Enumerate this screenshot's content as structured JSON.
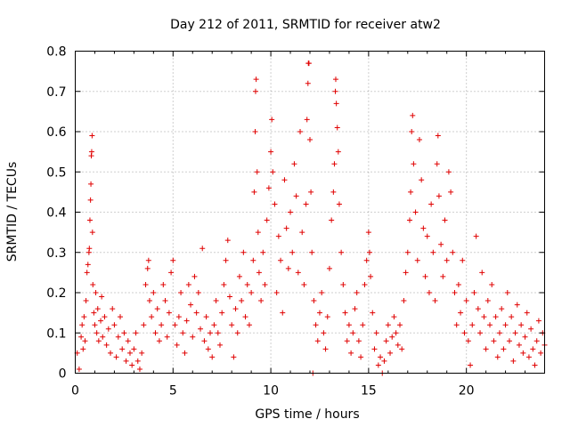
{
  "chart_data": {
    "type": "scatter",
    "title": "Day 212 of 2011, SRMTID for receiver atw2",
    "xlabel": "GPS time / hours",
    "ylabel": "SRMTID / TECUs",
    "xlim": [
      0,
      24
    ],
    "ylim": [
      0,
      0.8
    ],
    "xticks": [
      0,
      5,
      10,
      15,
      20
    ],
    "xtick_labels": [
      "0",
      "5",
      "10",
      "15",
      "20"
    ],
    "yticks": [
      0,
      0.1,
      0.2,
      0.3,
      0.4,
      0.5,
      0.6,
      0.7,
      0.8
    ],
    "ytick_labels": [
      "0",
      "0.1",
      "0.2",
      "0.3",
      "0.4",
      "0.5",
      "0.6",
      "0.7",
      "0.8"
    ],
    "grid": true,
    "marker": "plus",
    "color": "#e00000",
    "series": [
      {
        "name": "SRMTID",
        "points": [
          [
            0.1,
            0.05
          ],
          [
            0.2,
            0.01
          ],
          [
            0.3,
            0.09
          ],
          [
            0.35,
            0.12
          ],
          [
            0.4,
            0.06
          ],
          [
            0.45,
            0.14
          ],
          [
            0.5,
            0.08
          ],
          [
            0.55,
            0.18
          ],
          [
            0.6,
            0.25
          ],
          [
            0.65,
            0.27
          ],
          [
            0.7,
            0.3
          ],
          [
            0.72,
            0.31
          ],
          [
            0.75,
            0.38
          ],
          [
            0.78,
            0.43
          ],
          [
            0.8,
            0.47
          ],
          [
            0.82,
            0.54
          ],
          [
            0.84,
            0.55
          ],
          [
            0.86,
            0.59
          ],
          [
            0.88,
            0.35
          ],
          [
            0.9,
            0.22
          ],
          [
            0.95,
            0.15
          ],
          [
            1.0,
            0.12
          ],
          [
            1.05,
            0.2
          ],
          [
            1.1,
            0.1
          ],
          [
            1.15,
            0.16
          ],
          [
            1.2,
            0.08
          ],
          [
            1.3,
            0.13
          ],
          [
            1.35,
            0.19
          ],
          [
            1.4,
            0.09
          ],
          [
            1.5,
            0.14
          ],
          [
            1.6,
            0.07
          ],
          [
            1.7,
            0.11
          ],
          [
            1.8,
            0.05
          ],
          [
            1.9,
            0.16
          ],
          [
            2.0,
            0.12
          ],
          [
            2.1,
            0.04
          ],
          [
            2.2,
            0.09
          ],
          [
            2.3,
            0.14
          ],
          [
            2.4,
            0.06
          ],
          [
            2.5,
            0.1
          ],
          [
            2.6,
            0.03
          ],
          [
            2.7,
            0.08
          ],
          [
            2.8,
            0.05
          ],
          [
            2.9,
            0.02
          ],
          [
            3.0,
            0.06
          ],
          [
            3.1,
            0.1
          ],
          [
            3.2,
            0.03
          ],
          [
            3.3,
            0.01
          ],
          [
            3.4,
            0.05
          ],
          [
            3.5,
            0.12
          ],
          [
            3.6,
            0.22
          ],
          [
            3.7,
            0.26
          ],
          [
            3.75,
            0.28
          ],
          [
            3.8,
            0.18
          ],
          [
            3.9,
            0.14
          ],
          [
            4.0,
            0.2
          ],
          [
            4.1,
            0.1
          ],
          [
            4.2,
            0.16
          ],
          [
            4.3,
            0.08
          ],
          [
            4.4,
            0.12
          ],
          [
            4.5,
            0.22
          ],
          [
            4.6,
            0.18
          ],
          [
            4.7,
            0.09
          ],
          [
            4.8,
            0.15
          ],
          [
            4.9,
            0.25
          ],
          [
            5.0,
            0.28
          ],
          [
            5.1,
            0.12
          ],
          [
            5.2,
            0.07
          ],
          [
            5.3,
            0.14
          ],
          [
            5.4,
            0.2
          ],
          [
            5.5,
            0.1
          ],
          [
            5.6,
            0.05
          ],
          [
            5.7,
            0.13
          ],
          [
            5.8,
            0.22
          ],
          [
            5.9,
            0.17
          ],
          [
            6.0,
            0.09
          ],
          [
            6.1,
            0.24
          ],
          [
            6.2,
            0.15
          ],
          [
            6.3,
            0.2
          ],
          [
            6.4,
            0.11
          ],
          [
            6.5,
            0.31
          ],
          [
            6.6,
            0.08
          ],
          [
            6.7,
            0.14
          ],
          [
            6.8,
            0.06
          ],
          [
            6.9,
            0.1
          ],
          [
            7.0,
            0.04
          ],
          [
            7.1,
            0.12
          ],
          [
            7.2,
            0.18
          ],
          [
            7.3,
            0.1
          ],
          [
            7.4,
            0.07
          ],
          [
            7.5,
            0.15
          ],
          [
            7.6,
            0.22
          ],
          [
            7.7,
            0.28
          ],
          [
            7.8,
            0.33
          ],
          [
            7.9,
            0.19
          ],
          [
            8.0,
            0.12
          ],
          [
            8.1,
            0.04
          ],
          [
            8.2,
            0.16
          ],
          [
            8.3,
            0.1
          ],
          [
            8.4,
            0.24
          ],
          [
            8.5,
            0.18
          ],
          [
            8.6,
            0.3
          ],
          [
            8.7,
            0.14
          ],
          [
            8.8,
            0.22
          ],
          [
            8.9,
            0.12
          ],
          [
            9.0,
            0.2
          ],
          [
            9.1,
            0.28
          ],
          [
            9.15,
            0.45
          ],
          [
            9.2,
            0.6
          ],
          [
            9.22,
            0.7
          ],
          [
            9.25,
            0.73
          ],
          [
            9.3,
            0.5
          ],
          [
            9.35,
            0.35
          ],
          [
            9.4,
            0.25
          ],
          [
            9.5,
            0.18
          ],
          [
            9.6,
            0.3
          ],
          [
            9.7,
            0.22
          ],
          [
            9.8,
            0.38
          ],
          [
            9.9,
            0.46
          ],
          [
            10.0,
            0.55
          ],
          [
            10.05,
            0.63
          ],
          [
            10.1,
            0.5
          ],
          [
            10.2,
            0.42
          ],
          [
            10.3,
            0.2
          ],
          [
            10.4,
            0.34
          ],
          [
            10.5,
            0.28
          ],
          [
            10.6,
            0.15
          ],
          [
            10.7,
            0.48
          ],
          [
            10.8,
            0.36
          ],
          [
            10.9,
            0.26
          ],
          [
            11.0,
            0.4
          ],
          [
            11.1,
            0.3
          ],
          [
            11.2,
            0.52
          ],
          [
            11.3,
            0.44
          ],
          [
            11.4,
            0.25
          ],
          [
            11.5,
            0.6
          ],
          [
            11.6,
            0.35
          ],
          [
            11.7,
            0.22
          ],
          [
            11.8,
            0.42
          ],
          [
            11.85,
            0.63
          ],
          [
            11.9,
            0.72
          ],
          [
            11.92,
            0.77
          ],
          [
            11.95,
            0.77
          ],
          [
            12.0,
            0.58
          ],
          [
            12.05,
            0.45
          ],
          [
            12.1,
            0.3
          ],
          [
            12.15,
            0.0
          ],
          [
            12.2,
            0.18
          ],
          [
            12.3,
            0.12
          ],
          [
            12.4,
            0.08
          ],
          [
            12.5,
            0.15
          ],
          [
            12.6,
            0.2
          ],
          [
            12.7,
            0.1
          ],
          [
            12.8,
            0.06
          ],
          [
            12.9,
            0.14
          ],
          [
            13.0,
            0.26
          ],
          [
            13.1,
            0.38
          ],
          [
            13.2,
            0.45
          ],
          [
            13.25,
            0.52
          ],
          [
            13.3,
            0.7
          ],
          [
            13.32,
            0.73
          ],
          [
            13.35,
            0.67
          ],
          [
            13.4,
            0.61
          ],
          [
            13.45,
            0.55
          ],
          [
            13.5,
            0.42
          ],
          [
            13.6,
            0.3
          ],
          [
            13.7,
            0.22
          ],
          [
            13.8,
            0.15
          ],
          [
            13.9,
            0.08
          ],
          [
            14.0,
            0.12
          ],
          [
            14.1,
            0.05
          ],
          [
            14.2,
            0.1
          ],
          [
            14.3,
            0.16
          ],
          [
            14.4,
            0.2
          ],
          [
            14.5,
            0.08
          ],
          [
            14.6,
            0.04
          ],
          [
            14.7,
            0.12
          ],
          [
            14.8,
            0.22
          ],
          [
            14.9,
            0.28
          ],
          [
            15.0,
            0.35
          ],
          [
            15.05,
            0.3
          ],
          [
            15.1,
            0.24
          ],
          [
            15.2,
            0.15
          ],
          [
            15.3,
            0.06
          ],
          [
            15.4,
            0.1
          ],
          [
            15.5,
            0.02
          ],
          [
            15.6,
            0.04
          ],
          [
            15.7,
            0.0
          ],
          [
            15.8,
            0.03
          ],
          [
            15.9,
            0.08
          ],
          [
            16.0,
            0.12
          ],
          [
            16.1,
            0.05
          ],
          [
            16.2,
            0.09
          ],
          [
            16.3,
            0.14
          ],
          [
            16.4,
            0.1
          ],
          [
            16.5,
            0.07
          ],
          [
            16.6,
            0.12
          ],
          [
            16.7,
            0.06
          ],
          [
            16.8,
            0.18
          ],
          [
            16.9,
            0.25
          ],
          [
            17.0,
            0.3
          ],
          [
            17.1,
            0.38
          ],
          [
            17.15,
            0.45
          ],
          [
            17.2,
            0.6
          ],
          [
            17.25,
            0.64
          ],
          [
            17.3,
            0.52
          ],
          [
            17.4,
            0.4
          ],
          [
            17.5,
            0.28
          ],
          [
            17.6,
            0.58
          ],
          [
            17.7,
            0.48
          ],
          [
            17.8,
            0.36
          ],
          [
            17.9,
            0.24
          ],
          [
            18.0,
            0.34
          ],
          [
            18.1,
            0.2
          ],
          [
            18.2,
            0.42
          ],
          [
            18.3,
            0.3
          ],
          [
            18.4,
            0.18
          ],
          [
            18.5,
            0.52
          ],
          [
            18.55,
            0.59
          ],
          [
            18.6,
            0.44
          ],
          [
            18.7,
            0.32
          ],
          [
            18.8,
            0.24
          ],
          [
            18.9,
            0.38
          ],
          [
            19.0,
            0.28
          ],
          [
            19.1,
            0.5
          ],
          [
            19.2,
            0.45
          ],
          [
            19.3,
            0.3
          ],
          [
            19.4,
            0.2
          ],
          [
            19.5,
            0.12
          ],
          [
            19.6,
            0.22
          ],
          [
            19.7,
            0.15
          ],
          [
            19.8,
            0.28
          ],
          [
            19.9,
            0.1
          ],
          [
            20.0,
            0.18
          ],
          [
            20.1,
            0.08
          ],
          [
            20.2,
            0.02
          ],
          [
            20.3,
            0.12
          ],
          [
            20.4,
            0.2
          ],
          [
            20.5,
            0.34
          ],
          [
            20.6,
            0.16
          ],
          [
            20.7,
            0.1
          ],
          [
            20.8,
            0.25
          ],
          [
            20.9,
            0.14
          ],
          [
            21.0,
            0.06
          ],
          [
            21.1,
            0.18
          ],
          [
            21.2,
            0.12
          ],
          [
            21.3,
            0.22
          ],
          [
            21.4,
            0.08
          ],
          [
            21.5,
            0.14
          ],
          [
            21.6,
            0.04
          ],
          [
            21.7,
            0.1
          ],
          [
            21.8,
            0.16
          ],
          [
            21.9,
            0.06
          ],
          [
            22.0,
            0.12
          ],
          [
            22.1,
            0.2
          ],
          [
            22.2,
            0.08
          ],
          [
            22.3,
            0.14
          ],
          [
            22.4,
            0.03
          ],
          [
            22.5,
            0.1
          ],
          [
            22.6,
            0.17
          ],
          [
            22.7,
            0.07
          ],
          [
            22.8,
            0.12
          ],
          [
            22.9,
            0.05
          ],
          [
            23.0,
            0.09
          ],
          [
            23.1,
            0.15
          ],
          [
            23.2,
            0.04
          ],
          [
            23.3,
            0.11
          ],
          [
            23.4,
            0.06
          ],
          [
            23.5,
            0.02
          ],
          [
            23.6,
            0.08
          ],
          [
            23.7,
            0.13
          ],
          [
            23.8,
            0.05
          ],
          [
            23.9,
            0.1
          ],
          [
            24.0,
            0.07
          ]
        ]
      }
    ]
  }
}
